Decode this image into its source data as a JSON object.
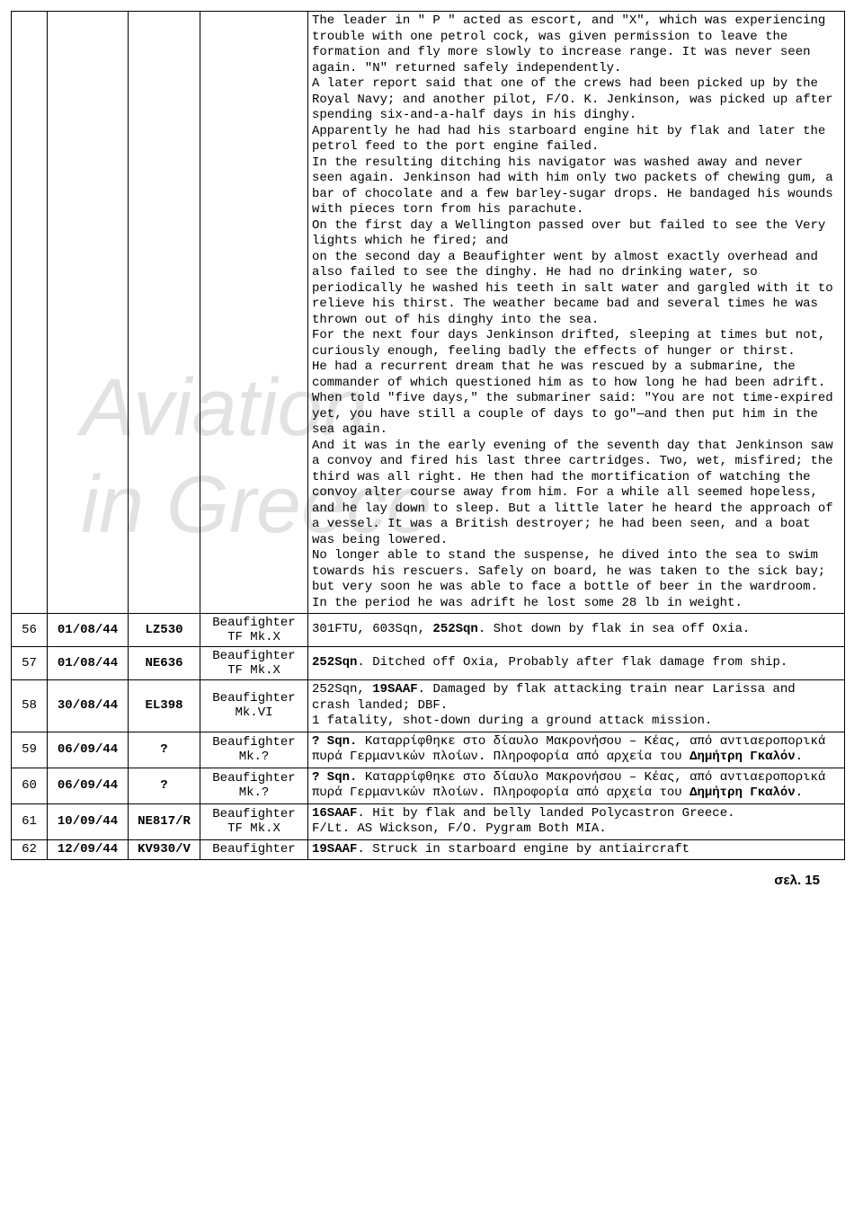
{
  "watermark": {
    "line1": "Aviation",
    "line2": "in Greece"
  },
  "rows": [
    {
      "num": "",
      "date": "",
      "serial": "",
      "ac": "",
      "desc": "The leader in \" P \" acted as escort, and \"X\", which was experiencing trouble with one petrol cock, was given permission to leave the formation and fly more slowly to increase range. It was never seen again. \"N\" returned safely independently.\nA later report said that one of the crews had been picked up by the Royal Navy; and another pilot, F/O. K. Jenkinson, was picked up after spending six-and-a-half days in his dinghy.\nApparently he had had his starboard engine hit by flak and later the petrol feed to the port engine failed.\nIn the resulting ditching his navigator was washed away and never seen again. Jenkinson had with him only two packets of chewing gum, a bar of chocolate and a few barley-sugar drops. He bandaged his wounds with pieces torn from his parachute.\nOn the first day a Wellington passed over but failed to see the Very lights which he fired; and\non the second day a Beaufighter went by almost exactly overhead and also failed to see the dinghy. He had no drinking water, so periodically he washed his teeth in salt water and gargled with it to relieve his thirst. The weather became bad and several times he was thrown out of his dinghy into the sea.\nFor the next four days Jenkinson drifted, sleeping at times but not, curiously enough, feeling badly the effects of hunger or thirst.\nHe had a recurrent dream that he was rescued by a submarine, the commander of which questioned him as to how long he had been adrift. When told \"five days,\" the submariner said: \"You are not time-expired yet, you have still a couple of days to go\"—and then put him in the sea again.\nAnd it was in the early evening of the seventh day that Jenkinson saw a convoy and fired his last three cartridges. Two, wet, misfired; the third was all right. He then had the mortification of watching the convoy alter course away from him. For a while all seemed hopeless, and he lay down to sleep. But a little later he heard the approach of a vessel. It was a British destroyer; he had been seen, and a boat was being lowered.\nNo longer able to stand the suspense, he dived into the sea to swim towards his rescuers. Safely on board, he was taken to the sick bay; but very soon he was able to face a bottle of beer in the wardroom.\nIn the period he was adrift he lost some 28 lb in weight."
    },
    {
      "num": "56",
      "date": "01/08/44",
      "serial": "LZ530",
      "ac": "Beaufighter TF Mk.X",
      "desc": "301FTU, 603Sqn, <b>252Sqn</b>. Shot down by flak in sea off Oxia."
    },
    {
      "num": "57",
      "date": "01/08/44",
      "serial": "NE636",
      "ac": "Beaufighter TF Mk.X",
      "desc": "<b>252Sqn</b>. Ditched off Oxia, Probably after flak damage from ship."
    },
    {
      "num": "58",
      "date": "30/08/44",
      "serial": "EL398",
      "ac": "Beaufighter Mk.VI",
      "desc": "252Sqn, <b>19SAAF</b>. Damaged by flak attacking train near Larissa and crash landed; DBF.\n1 fatality, shot-down during a ground attack mission."
    },
    {
      "num": "59",
      "date": "06/09/44",
      "serial": "?",
      "ac": "Beaufighter Mk.?",
      "desc": "<b>? Sqn.</b> Καταρρίφθηκε στο δίαυλο Μακρονήσου – Κέας, από αντιαεροπορικά πυρά Γερμανικών πλοίων. Πληροφορία από αρχεία του <b>Δημήτρη Γκαλόν</b>."
    },
    {
      "num": "60",
      "date": "06/09/44",
      "serial": "?",
      "ac": "Beaufighter Mk.?",
      "desc": "<b>? Sqn.</b> Καταρρίφθηκε στο δίαυλο Μακρονήσου – Κέας, από αντιαεροπορικά πυρά Γερμανικών πλοίων. Πληροφορία από αρχεία του <b>Δημήτρη Γκαλόν</b>."
    },
    {
      "num": "61",
      "date": "10/09/44",
      "serial": "NE817/R",
      "ac": "Beaufighter TF Mk.X",
      "desc": "<b>16SAAF</b>. Hit by flak and belly landed Polycastron Greece.\nF/Lt. AS Wickson, F/O. Pygram Both MIA."
    },
    {
      "num": "62",
      "date": "12/09/44",
      "serial": "KV930/V",
      "ac": "Beaufighter",
      "desc": "<b>19SAAF</b>. Struck in starboard engine by antiaircraft"
    }
  ],
  "footer": "σελ. 15"
}
